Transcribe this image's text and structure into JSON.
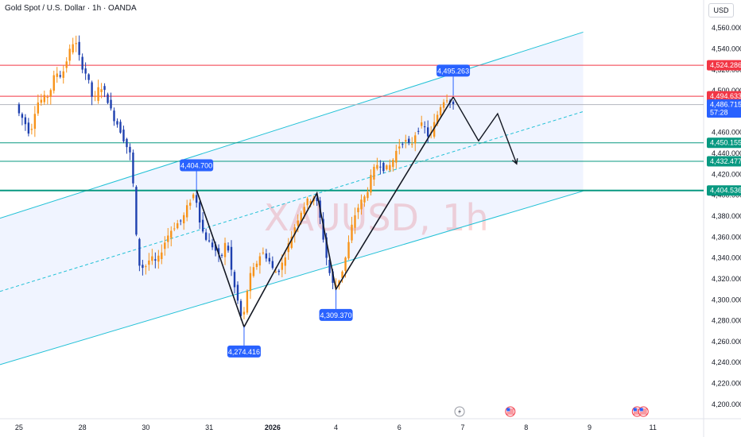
{
  "header": {
    "title": "Gold Spot / U.S. Dollar · 1h · OANDA",
    "currency": "USD"
  },
  "watermark": "XAUUSD, 1h",
  "chart_data": {
    "type": "candlestick",
    "ylim": [
      4190,
      4570
    ],
    "y_ticks": [
      "4,560.000",
      "4,540.000",
      "4,520.000",
      "4,500.000",
      "4,480.000",
      "4,460.000",
      "4,440.000",
      "4,420.000",
      "4,400.000",
      "4,380.000",
      "4,360.000",
      "4,340.000",
      "4,320.000",
      "4,300.000",
      "4,280.000",
      "4,260.000",
      "4,240.000",
      "4,220.000",
      "4,200.000"
    ],
    "x_ticks": [
      {
        "label": "25",
        "i": 0
      },
      {
        "label": "28",
        "i": 20
      },
      {
        "label": "30",
        "i": 40
      },
      {
        "label": "31",
        "i": 60
      },
      {
        "label": "2026",
        "i": 80,
        "bold": true
      },
      {
        "label": "4",
        "i": 100
      },
      {
        "label": "6",
        "i": 120
      },
      {
        "label": "7",
        "i": 140
      },
      {
        "label": "8",
        "i": 160
      },
      {
        "label": "9",
        "i": 180
      },
      {
        "label": "11",
        "i": 200
      }
    ],
    "x_domain": [
      -6,
      216
    ],
    "last_index": 137,
    "anchors": [
      [
        0,
        4480
      ],
      [
        2,
        4472
      ],
      [
        4,
        4458
      ],
      [
        6,
        4488
      ],
      [
        10,
        4496
      ],
      [
        12,
        4518
      ],
      [
        14,
        4514
      ],
      [
        16,
        4534
      ],
      [
        18,
        4550
      ],
      [
        20,
        4526
      ],
      [
        22,
        4514
      ],
      [
        24,
        4488
      ],
      [
        26,
        4506
      ],
      [
        28,
        4496
      ],
      [
        30,
        4476
      ],
      [
        32,
        4466
      ],
      [
        34,
        4450
      ],
      [
        36,
        4436
      ],
      [
        37,
        4385
      ],
      [
        38,
        4335
      ],
      [
        40,
        4330
      ],
      [
        42,
        4340
      ],
      [
        44,
        4335
      ],
      [
        46,
        4352
      ],
      [
        48,
        4365
      ],
      [
        50,
        4372
      ],
      [
        52,
        4376
      ],
      [
        54,
        4392
      ],
      [
        56,
        4403
      ],
      [
        58,
        4368
      ],
      [
        60,
        4356
      ],
      [
        62,
        4350
      ],
      [
        64,
        4338
      ],
      [
        66,
        4358
      ],
      [
        68,
        4318
      ],
      [
        70,
        4292
      ],
      [
        71,
        4276
      ],
      [
        73,
        4320
      ],
      [
        75,
        4332
      ],
      [
        77,
        4346
      ],
      [
        79,
        4340
      ],
      [
        81,
        4326
      ],
      [
        83,
        4330
      ],
      [
        85,
        4348
      ],
      [
        87,
        4366
      ],
      [
        89,
        4382
      ],
      [
        91,
        4393
      ],
      [
        94,
        4400
      ],
      [
        96,
        4370
      ],
      [
        97,
        4348
      ],
      [
        99,
        4318
      ],
      [
        100,
        4312
      ],
      [
        102,
        4322
      ],
      [
        104,
        4346
      ],
      [
        106,
        4378
      ],
      [
        108,
        4392
      ],
      [
        110,
        4400
      ],
      [
        112,
        4422
      ],
      [
        114,
        4432
      ],
      [
        116,
        4424
      ],
      [
        118,
        4430
      ],
      [
        120,
        4446
      ],
      [
        122,
        4453
      ],
      [
        124,
        4446
      ],
      [
        126,
        4463
      ],
      [
        128,
        4468
      ],
      [
        130,
        4454
      ],
      [
        132,
        4473
      ],
      [
        134,
        4490
      ],
      [
        136,
        4494
      ],
      [
        137,
        4487
      ]
    ],
    "channel": {
      "upper": [
        [
          -6,
          4378
        ],
        [
          178,
          4556
        ]
      ],
      "lower": [
        [
          -6,
          4238
        ],
        [
          178,
          4404
        ]
      ],
      "mid": [
        [
          -6,
          4308
        ],
        [
          178,
          4480
        ]
      ]
    },
    "zigzag": [
      [
        56,
        4405
      ],
      [
        71,
        4274
      ],
      [
        94,
        4402
      ],
      [
        100,
        4310
      ],
      [
        137,
        4494
      ]
    ],
    "projection": [
      [
        137,
        4494
      ],
      [
        145,
        4452
      ],
      [
        151,
        4478
      ],
      [
        157,
        4430
      ]
    ],
    "hlines": [
      {
        "y": 4524.286,
        "color": "#f23645",
        "label": "4,524.286"
      },
      {
        "y": 4494.633,
        "color": "#f23645",
        "label": "4,494.633"
      },
      {
        "y": 4486.715,
        "color": "#b2b5be",
        "label": "4,486.715",
        "countdown": "57:28",
        "tag_color": "#2962ff"
      },
      {
        "y": 4450.155,
        "color": "#089981",
        "label": "4,450.155"
      },
      {
        "y": 4432.477,
        "color": "#089981",
        "label": "4,432.477"
      },
      {
        "y": 4404.536,
        "color": "#089981",
        "label": "4,404.536",
        "thick": true
      }
    ],
    "callouts": [
      {
        "label": "4,495.263",
        "i": 137,
        "y": 4495.263,
        "pos": "above"
      },
      {
        "label": "4,404.700",
        "i": 56,
        "y": 4404.7,
        "pos": "above"
      },
      {
        "label": "4,274.416",
        "i": 71,
        "y": 4274.416,
        "pos": "below"
      },
      {
        "label": "4,309.370",
        "i": 100,
        "y": 4309.37,
        "pos": "below"
      }
    ],
    "events": [
      {
        "i": 139,
        "type": "lightning"
      },
      {
        "i": 155,
        "type": "flag"
      },
      {
        "i": 195,
        "type": "flag"
      },
      {
        "i": 197,
        "type": "flag"
      }
    ]
  }
}
